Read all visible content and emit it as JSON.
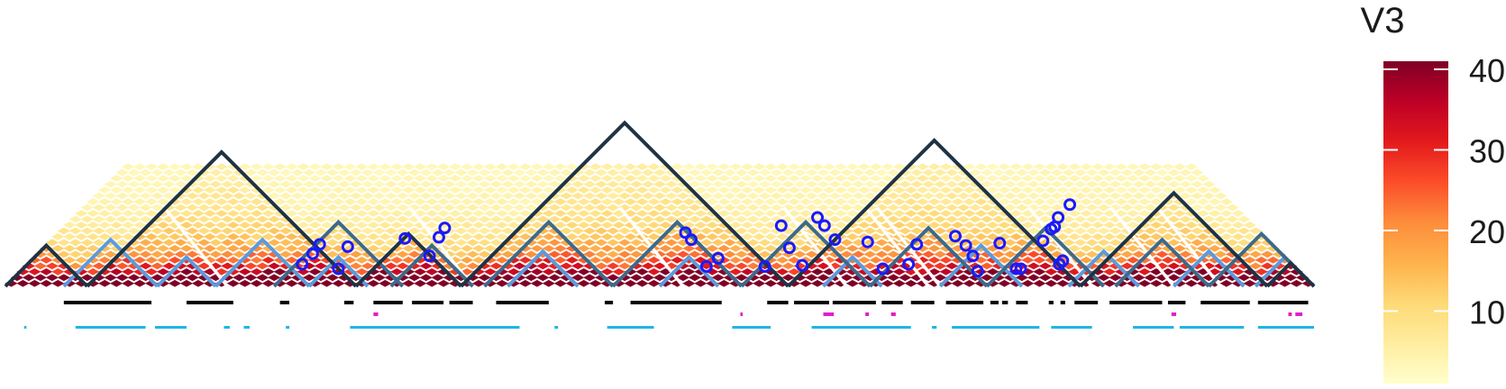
{
  "chart_data": {
    "type": "heatmap",
    "subtype": "hic-triangle-contact-map",
    "title": "",
    "xlabel": "",
    "ylabel": "",
    "grid": false,
    "legend": {
      "title": "V3",
      "placement": "right",
      "ticks": [
        10,
        20,
        30,
        40
      ],
      "range": [
        1,
        41
      ],
      "colors": [
        "#FFFFCC",
        "#FFEDA0",
        "#FED976",
        "#FEB24C",
        "#FD8D3C",
        "#FC4E2A",
        "#E31A1C",
        "#BD0026",
        "#800026"
      ]
    },
    "bins": 112,
    "max_distance_bins": 11,
    "domains_level1": [
      [
        0,
        7
      ],
      [
        7,
        30
      ],
      [
        30,
        39
      ],
      [
        39,
        67
      ],
      [
        67,
        92
      ],
      [
        92,
        108
      ],
      [
        108,
        112
      ]
    ],
    "domains_level2": [
      [
        23,
        34
      ],
      [
        33,
        40
      ],
      [
        41,
        52
      ],
      [
        52,
        63
      ],
      [
        63,
        74
      ],
      [
        74,
        84
      ],
      [
        84,
        94
      ],
      [
        95,
        103
      ],
      [
        103,
        112
      ]
    ],
    "domains_level3": [
      [
        5,
        13
      ],
      [
        13,
        18
      ],
      [
        18,
        26
      ],
      [
        26,
        31
      ],
      [
        43,
        49
      ],
      [
        56,
        61
      ],
      [
        70,
        75
      ],
      [
        80,
        87
      ],
      [
        91,
        97
      ],
      [
        100,
        106
      ],
      [
        107,
        112
      ]
    ],
    "boundary_lines": [
      [
        19,
        1
      ],
      [
        40,
        1
      ],
      [
        58,
        1
      ],
      [
        72,
        1
      ],
      [
        79,
        1
      ],
      [
        80,
        1
      ],
      [
        93,
        1
      ],
      [
        100,
        1
      ],
      [
        104,
        1
      ]
    ],
    "loops": [
      [
        25.4,
        1.9
      ],
      [
        26.3,
        2.8
      ],
      [
        26.9,
        3.6
      ],
      [
        28.5,
        1.5
      ],
      [
        29.3,
        3.4
      ],
      [
        34.2,
        4.1
      ],
      [
        36.3,
        2.6
      ],
      [
        37.1,
        4.2
      ],
      [
        37.6,
        5.0
      ],
      [
        58.2,
        4.6
      ],
      [
        58.7,
        4.0
      ],
      [
        60.0,
        1.7
      ],
      [
        61.0,
        2.4
      ],
      [
        65.0,
        1.7
      ],
      [
        66.4,
        5.2
      ],
      [
        67.1,
        3.3
      ],
      [
        68.2,
        1.8
      ],
      [
        69.5,
        5.9
      ],
      [
        70.1,
        5.2
      ],
      [
        71.0,
        4.0
      ],
      [
        73.8,
        3.8
      ],
      [
        75.1,
        1.5
      ],
      [
        77.3,
        1.9
      ],
      [
        78.0,
        3.6
      ],
      [
        81.3,
        4.3
      ],
      [
        82.2,
        3.5
      ],
      [
        82.8,
        2.6
      ],
      [
        83.2,
        1.3
      ],
      [
        85.1,
        3.7
      ],
      [
        86.5,
        1.5
      ],
      [
        86.9,
        1.5
      ],
      [
        88.8,
        3.9
      ],
      [
        89.5,
        4.9
      ],
      [
        89.8,
        5.1
      ],
      [
        90.1,
        5.9
      ],
      [
        90.2,
        1.9
      ],
      [
        90.5,
        2.2
      ],
      [
        91.1,
        7.0
      ]
    ],
    "track_black": [
      [
        5,
        12.5
      ],
      [
        15.5,
        19.5
      ],
      [
        23.5,
        24.3
      ],
      [
        29,
        29.8
      ],
      [
        31.5,
        34
      ],
      [
        34.8,
        37.5
      ],
      [
        38,
        40
      ],
      [
        42,
        46.5
      ],
      [
        51.3,
        52
      ],
      [
        53.5,
        61.3
      ],
      [
        65.2,
        67
      ],
      [
        67.5,
        70.5
      ],
      [
        70.8,
        74.5
      ],
      [
        75,
        76.8
      ],
      [
        77.5,
        79.5
      ],
      [
        80.5,
        83.7
      ],
      [
        84.3,
        85
      ],
      [
        85.3,
        85.8
      ],
      [
        86.5,
        87.5
      ],
      [
        89.3,
        89.7
      ],
      [
        90.3,
        90.7
      ],
      [
        91.5,
        93.5
      ],
      [
        94.5,
        99
      ],
      [
        99.5,
        101
      ],
      [
        102.3,
        106.5
      ],
      [
        107.2,
        111.5
      ]
    ],
    "track_magenta": [
      [
        31.5,
        31.9
      ],
      [
        62.9,
        63.1
      ],
      [
        70,
        70.9
      ],
      [
        73.6,
        73.9
      ],
      [
        75.8,
        76.2
      ],
      [
        99.8,
        100.2
      ],
      [
        109.8,
        110.1
      ],
      [
        110.4,
        111
      ]
    ],
    "track_cyan": [
      [
        1.6,
        1.8
      ],
      [
        6,
        12
      ],
      [
        12.8,
        15.5
      ],
      [
        18.7,
        19.2
      ],
      [
        20.4,
        20.9
      ],
      [
        24,
        24.3
      ],
      [
        29.5,
        44
      ],
      [
        47,
        47.3
      ],
      [
        51.5,
        55.5
      ],
      [
        62.2,
        65.5
      ],
      [
        69,
        77.5
      ],
      [
        79.3,
        79.7
      ],
      [
        81,
        88.5
      ],
      [
        89.5,
        93
      ],
      [
        96.5,
        100
      ],
      [
        100.5,
        106
      ],
      [
        107.2,
        112
      ]
    ]
  }
}
